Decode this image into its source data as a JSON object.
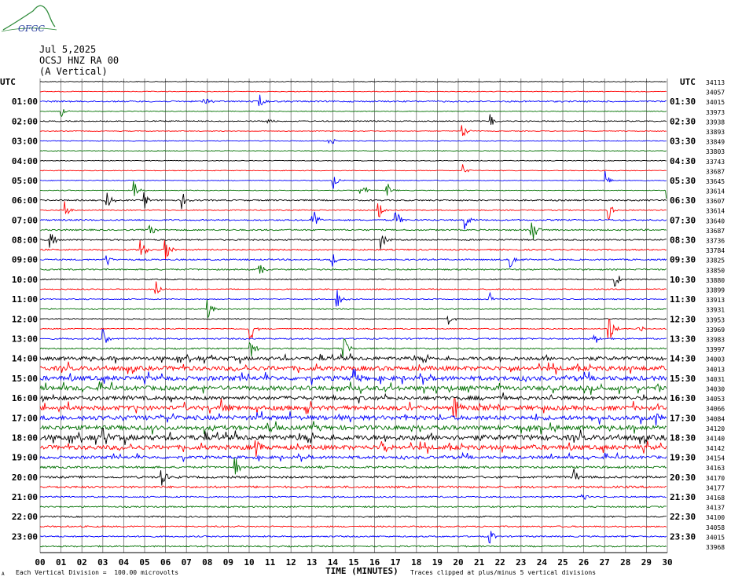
{
  "logo": {
    "text": "OFGC"
  },
  "header": {
    "date": "Jul 5,2025",
    "station": "OCSJ HNZ RA 00",
    "component": "(A Vertical)"
  },
  "colors": {
    "trace_cycle": [
      "#000000",
      "#ff0000",
      "#0000ff",
      "#007000"
    ],
    "grid": "#707070",
    "logo": "#2e8b3a"
  },
  "chart_data": {
    "type": "line",
    "title": "",
    "xlabel": "TIME (MINUTES)",
    "ylabel": "",
    "left_axis_label": "UTC",
    "right_axis_label": "UTC",
    "xlim": [
      0,
      30
    ],
    "x_ticks": [
      "00",
      "01",
      "02",
      "03",
      "04",
      "05",
      "06",
      "07",
      "08",
      "09",
      "10",
      "11",
      "12",
      "13",
      "14",
      "15",
      "16",
      "17",
      "18",
      "19",
      "20",
      "21",
      "22",
      "23",
      "24",
      "25",
      "26",
      "27",
      "28",
      "29",
      "30"
    ],
    "left_hour_labels": [
      "01:00",
      "02:00",
      "03:00",
      "04:00",
      "05:00",
      "06:00",
      "07:00",
      "08:00",
      "09:00",
      "10:00",
      "11:00",
      "12:00",
      "13:00",
      "14:00",
      "15:00",
      "16:00",
      "17:00",
      "18:00",
      "19:00",
      "20:00",
      "21:00",
      "22:00",
      "23:00"
    ],
    "right_hour_labels": [
      "01:30",
      "02:30",
      "03:30",
      "04:30",
      "05:30",
      "06:30",
      "07:30",
      "08:30",
      "09:30",
      "10:30",
      "11:30",
      "12:30",
      "13:30",
      "14:30",
      "15:30",
      "16:30",
      "17:30",
      "18:30",
      "19:30",
      "20:30",
      "21:30",
      "22:30",
      "23:30"
    ],
    "trace_offsets": [
      "34113",
      "34057",
      "34015",
      "33973",
      "33938",
      "33893",
      "33849",
      "33803",
      "33743",
      "33687",
      "33645",
      "33614",
      "33607",
      "33614",
      "33640",
      "33687",
      "33736",
      "33784",
      "33825",
      "33850",
      "33880",
      "33899",
      "33913",
      "33931",
      "33953",
      "33969",
      "33983",
      "33997",
      "34003",
      "34013",
      "34031",
      "34030",
      "34053",
      "34066",
      "34084",
      "34120",
      "34140",
      "34142",
      "34154",
      "34163",
      "34170",
      "34177",
      "34168",
      "34137",
      "34100",
      "34058",
      "34015",
      "33968"
    ],
    "trace_activity": [
      1,
      1,
      2,
      1,
      1.5,
      1,
      1,
      1,
      1,
      1,
      1,
      1,
      2,
      1.5,
      2,
      2,
      2,
      2,
      2,
      2,
      1.5,
      1.5,
      1.5,
      1.5,
      1.5,
      1.5,
      2,
      2,
      5,
      6,
      6,
      6,
      5,
      6,
      6,
      6,
      7,
      6,
      4,
      3,
      3,
      3,
      2,
      2,
      2,
      2,
      2,
      2
    ],
    "events": [
      {
        "trace": 2,
        "minute": 7.8,
        "amp": 1.2
      },
      {
        "trace": 2,
        "minute": 10.5,
        "amp": 1.4
      },
      {
        "trace": 3,
        "minute": 1.0,
        "amp": 1.0
      },
      {
        "trace": 4,
        "minute": 21.5,
        "amp": 1.2
      },
      {
        "trace": 4,
        "minute": 10.9,
        "amp": 0.8
      },
      {
        "trace": 5,
        "minute": 20.2,
        "amp": 1.2
      },
      {
        "trace": 6,
        "minute": 13.8,
        "amp": 1.8
      },
      {
        "trace": 9,
        "minute": 20.2,
        "amp": 1.0
      },
      {
        "trace": 10,
        "minute": 14.0,
        "amp": 1.6
      },
      {
        "trace": 10,
        "minute": 27.0,
        "amp": 2.0
      },
      {
        "trace": 11,
        "minute": 4.5,
        "amp": 1.5
      },
      {
        "trace": 11,
        "minute": 15.3,
        "amp": 2.5
      },
      {
        "trace": 11,
        "minute": 16.6,
        "amp": 1.2
      },
      {
        "trace": 11,
        "minute": 30.0,
        "amp": 1.2
      },
      {
        "trace": 12,
        "minute": 3.2,
        "amp": 1.5
      },
      {
        "trace": 12,
        "minute": 5.0,
        "amp": 1.2
      },
      {
        "trace": 12,
        "minute": 6.8,
        "amp": 1.3
      },
      {
        "trace": 13,
        "minute": 1.2,
        "amp": 1.5
      },
      {
        "trace": 13,
        "minute": 16.2,
        "amp": 1.5
      },
      {
        "trace": 13,
        "minute": 27.2,
        "amp": 1.5
      },
      {
        "trace": 14,
        "minute": 13.0,
        "amp": 2.5
      },
      {
        "trace": 14,
        "minute": 17.0,
        "amp": 2.0
      },
      {
        "trace": 14,
        "minute": 20.3,
        "amp": 1.8
      },
      {
        "trace": 15,
        "minute": 5.2,
        "amp": 1.8
      },
      {
        "trace": 15,
        "minute": 23.5,
        "amp": 2.5
      },
      {
        "trace": 16,
        "minute": 0.5,
        "amp": 1.5
      },
      {
        "trace": 16,
        "minute": 16.3,
        "amp": 1.8
      },
      {
        "trace": 17,
        "minute": 4.8,
        "amp": 2.2
      },
      {
        "trace": 17,
        "minute": 6.0,
        "amp": 2.2
      },
      {
        "trace": 18,
        "minute": 13.9,
        "amp": 1.8
      },
      {
        "trace": 18,
        "minute": 3.2,
        "amp": 1.0
      },
      {
        "trace": 18,
        "minute": 22.5,
        "amp": 1.5
      },
      {
        "trace": 19,
        "minute": 10.5,
        "amp": 1.2
      },
      {
        "trace": 20,
        "minute": 27.5,
        "amp": 1.5
      },
      {
        "trace": 21,
        "minute": 5.5,
        "amp": 1.6
      },
      {
        "trace": 22,
        "minute": 14.2,
        "amp": 1.8
      },
      {
        "trace": 22,
        "minute": 21.5,
        "amp": 1.5
      },
      {
        "trace": 23,
        "minute": 8.0,
        "amp": 1.6
      },
      {
        "trace": 24,
        "minute": 19.5,
        "amp": 1.2
      },
      {
        "trace": 25,
        "minute": 10.0,
        "amp": 3.0
      },
      {
        "trace": 25,
        "minute": 27.2,
        "amp": 3.0
      },
      {
        "trace": 25,
        "minute": 28.6,
        "amp": 1.5
      },
      {
        "trace": 26,
        "minute": 3.0,
        "amp": 1.5
      },
      {
        "trace": 26,
        "minute": 26.5,
        "amp": 1.2
      },
      {
        "trace": 27,
        "minute": 10.0,
        "amp": 2.5
      },
      {
        "trace": 27,
        "minute": 14.5,
        "amp": 2.5
      },
      {
        "trace": 30,
        "minute": 15.0,
        "amp": 2.0
      },
      {
        "trace": 33,
        "minute": 8.7,
        "amp": 2.5
      },
      {
        "trace": 33,
        "minute": 19.8,
        "amp": 3.0
      },
      {
        "trace": 34,
        "minute": 29.5,
        "amp": 1.5
      },
      {
        "trace": 36,
        "minute": 3.0,
        "amp": 2.5
      },
      {
        "trace": 37,
        "minute": 10.3,
        "amp": 2.5
      },
      {
        "trace": 37,
        "minute": 16.3,
        "amp": 1.5
      },
      {
        "trace": 39,
        "minute": 9.3,
        "amp": 2.0
      },
      {
        "trace": 40,
        "minute": 5.8,
        "amp": 1.8
      },
      {
        "trace": 40,
        "minute": 25.5,
        "amp": 1.5
      },
      {
        "trace": 42,
        "minute": 25.9,
        "amp": 1.2
      },
      {
        "trace": 46,
        "minute": 21.5,
        "amp": 1.2
      }
    ]
  },
  "footer": {
    "scale_note": "Each Vertical Division =  100.00 microvolts",
    "clip_note": "Traces clipped at plus/minus 5 vertical divisions",
    "corner_mark": "A"
  }
}
